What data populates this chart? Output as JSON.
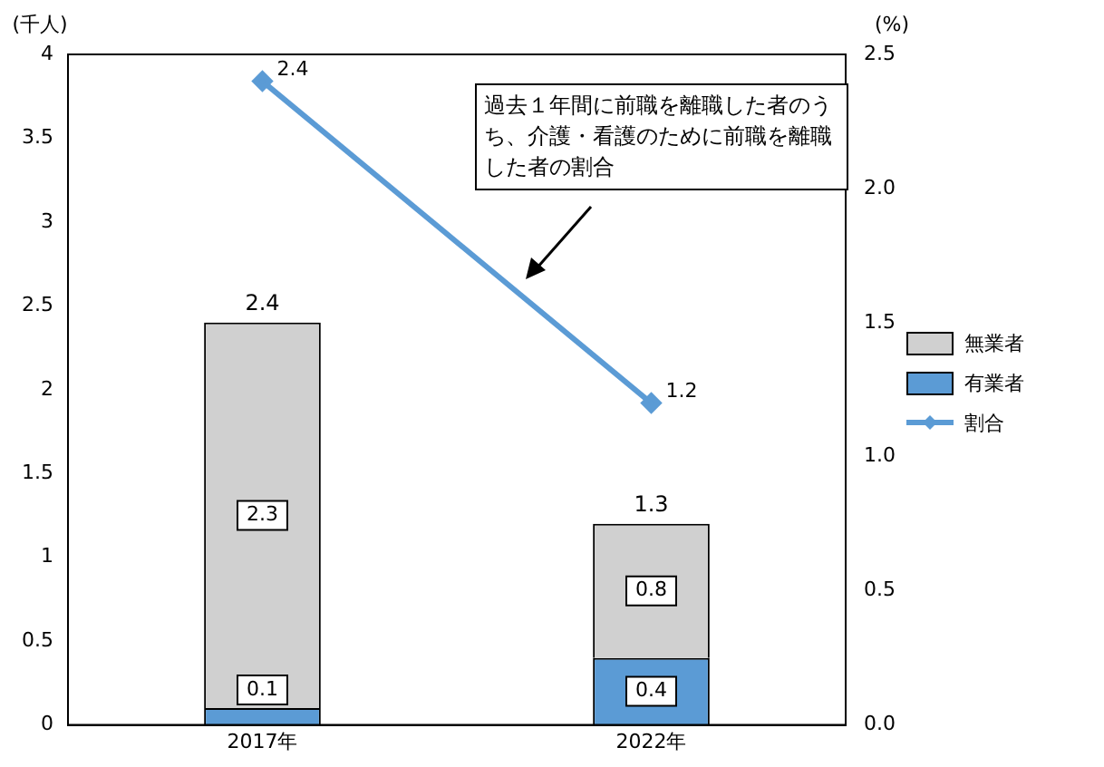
{
  "chart_data": {
    "type": "bar",
    "stacked": true,
    "categories": [
      "2017年",
      "2022年"
    ],
    "ylabel": "(千人)",
    "y2label": "(%)",
    "ylim": [
      0,
      4
    ],
    "yticks": [
      0,
      0.5,
      1,
      1.5,
      2,
      2.5,
      3,
      3.5,
      4
    ],
    "y2lim": [
      0,
      2.5
    ],
    "y2ticks": [
      {
        "value": 0,
        "label": "0.0"
      },
      {
        "value": 0.5,
        "label": "0.5"
      },
      {
        "value": 1,
        "label": "1.0"
      },
      {
        "value": 1.5,
        "label": "1.5"
      },
      {
        "value": 2,
        "label": "2.0"
      },
      {
        "value": 2.5,
        "label": "2.5"
      }
    ],
    "series": [
      {
        "name": "有業者",
        "color": "#5b9bd5",
        "values": [
          0.1,
          0.4
        ]
      },
      {
        "name": "無業者",
        "color": "#d0d0d0",
        "values": [
          2.3,
          0.8
        ]
      },
      {
        "name": "割合",
        "type": "line",
        "axis": "y2",
        "color": "#5b9bd5",
        "values": [
          2.4,
          1.2
        ]
      }
    ],
    "totals": [
      "2.4",
      "1.3"
    ],
    "data_labels": true,
    "legend": "right",
    "marker": "diamond",
    "annotations": [
      "過去１年間に前職を離職した者のうち、介護・看護のために前職を離職した者の割合"
    ]
  }
}
